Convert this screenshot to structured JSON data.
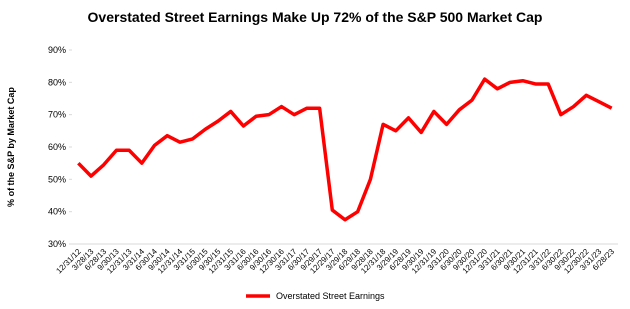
{
  "chart_data": {
    "type": "line",
    "title": "Overstated Street Earnings Make Up 72% of the S&P 500 Market Cap",
    "y_label": "% of the S&P by Market Cap",
    "categories": [
      "12/31/12",
      "3/28/13",
      "6/28/13",
      "9/30/13",
      "12/31/13",
      "3/31/14",
      "6/30/14",
      "9/30/14",
      "12/31/14",
      "3/31/15",
      "6/30/15",
      "9/30/15",
      "12/31/15",
      "3/31/16",
      "6/30/16",
      "9/30/16",
      "12/30/16",
      "3/31/17",
      "6/30/17",
      "9/29/17",
      "12/29/17",
      "3/29/18",
      "6/29/18",
      "9/28/18",
      "12/31/18",
      "3/29/19",
      "6/28/19",
      "9/30/19",
      "12/31/19",
      "3/31/20",
      "6/30/20",
      "9/30/20",
      "12/31/20",
      "3/31/21",
      "6/30/21",
      "9/30/21",
      "12/31/21",
      "3/31/22",
      "6/30/22",
      "9/30/22",
      "12/30/22",
      "3/31/23",
      "6/28/23"
    ],
    "series": [
      {
        "name": "Overstated Street Earnings",
        "color": "#ff0000",
        "values": [
          55,
          51,
          54.5,
          59,
          59,
          55,
          60.5,
          63.5,
          61.5,
          62.5,
          65.5,
          68,
          71,
          66.5,
          69.5,
          70,
          72.5,
          70,
          72,
          72,
          40.5,
          37.5,
          40,
          50,
          67,
          65,
          69,
          64.5,
          71,
          67,
          71.5,
          74.5,
          81,
          78,
          80,
          80.5,
          79.5,
          79.5,
          70,
          72.5,
          76,
          74,
          72
        ]
      }
    ],
    "ylim": [
      30,
      90
    ],
    "yticks": [
      {
        "value": 30,
        "label": "30%"
      },
      {
        "value": 40,
        "label": "40%"
      },
      {
        "value": 50,
        "label": "50%"
      },
      {
        "value": 60,
        "label": "60%"
      },
      {
        "value": 70,
        "label": "70%"
      },
      {
        "value": 80,
        "label": "80%"
      },
      {
        "value": 90,
        "label": "90%"
      }
    ],
    "legend": "bottom"
  }
}
